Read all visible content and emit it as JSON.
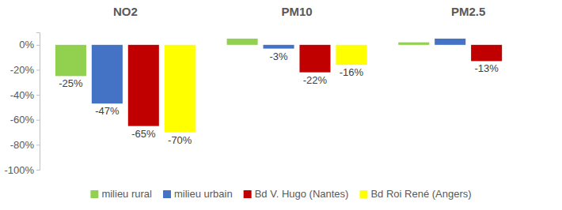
{
  "chart_data": {
    "type": "bar",
    "categories": [
      "NO2",
      "PM10",
      "PM2.5"
    ],
    "series": [
      {
        "name": "milieu rural",
        "color": "#92d050",
        "values": [
          -25,
          5,
          2
        ],
        "value_labels": [
          "-25%",
          null,
          null
        ]
      },
      {
        "name": "milieu urbain",
        "color": "#4472c4",
        "values": [
          -47,
          -3,
          5
        ],
        "value_labels": [
          "-47%",
          "-3%",
          null
        ]
      },
      {
        "name": "Bd V. Hugo (Nantes)",
        "color": "#c00000",
        "values": [
          -65,
          -22,
          -13
        ],
        "value_labels": [
          "-65%",
          "-22%",
          "-13%"
        ]
      },
      {
        "name": "Bd Roi René (Angers)",
        "color": "#ffff00",
        "values": [
          -70,
          -16,
          null
        ],
        "value_labels": [
          "-70%",
          "-16%",
          null
        ]
      }
    ],
    "ylim": [
      -100,
      10
    ],
    "yticks": [
      {
        "value": 0,
        "label": "0%"
      },
      {
        "value": -20,
        "label": "-20%"
      },
      {
        "value": -40,
        "label": "-40%"
      },
      {
        "value": -60,
        "label": "-60%"
      },
      {
        "value": -80,
        "label": "-80%"
      },
      {
        "value": -100,
        "label": "-100%"
      }
    ],
    "grid": false,
    "data_labels": true,
    "legend": "bottom"
  }
}
